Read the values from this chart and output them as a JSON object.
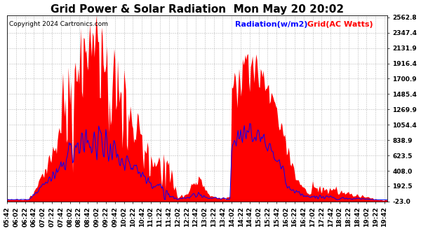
{
  "title": "Grid Power & Solar Radiation  Mon May 20 20:02",
  "copyright": "Copyright 2024 Cartronics.com",
  "legend_radiation": "Radiation(w/m2)",
  "legend_grid": "Grid(AC Watts)",
  "legend_radiation_color": "blue",
  "legend_grid_color": "red",
  "background_color": "#ffffff",
  "plot_bg_color": "#ffffff",
  "yticks": [
    2562.8,
    2347.4,
    2131.9,
    1916.4,
    1700.9,
    1485.4,
    1269.9,
    1054.4,
    838.9,
    623.5,
    408.0,
    192.5,
    -23.0
  ],
  "ymin": -23.0,
  "ymax": 2562.8,
  "title_fontsize": 11,
  "tick_fontsize": 6.5,
  "copyright_fontsize": 6.5,
  "legend_fontsize": 8
}
